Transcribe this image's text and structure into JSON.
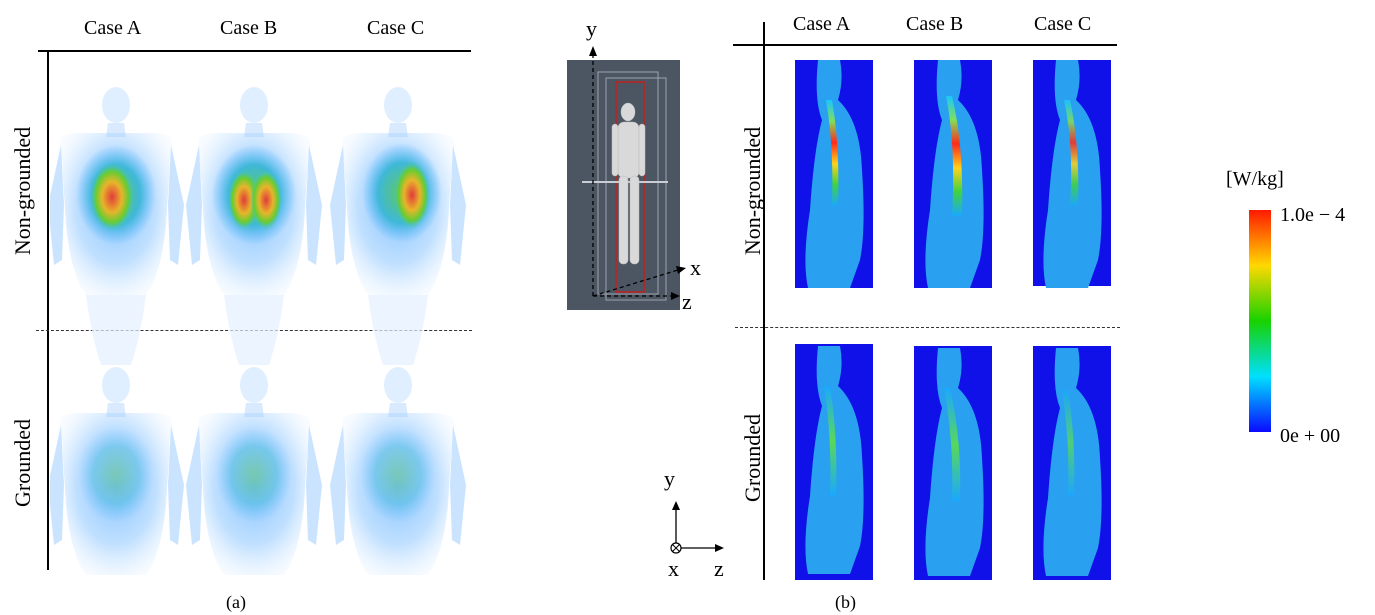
{
  "panel_a": {
    "columns": [
      "Case A",
      "Case B",
      "Case C"
    ],
    "rows": [
      "Non-grounded",
      "Grounded"
    ],
    "label": "(a)"
  },
  "model_view": {
    "axis_y": "y",
    "axis_x": "x",
    "axis_z": "z"
  },
  "panel_b": {
    "columns": [
      "Case A",
      "Case B",
      "Case C"
    ],
    "rows": [
      "Non-grounded",
      "Grounded"
    ],
    "label": "(b)",
    "axes": {
      "y": "y",
      "x": "x",
      "z": "z"
    }
  },
  "colorbar": {
    "unit": "[W/kg]",
    "max_label": "1.0e − 4",
    "min_label": "0e + 00",
    "colors": [
      "#ff1a00",
      "#ffd800",
      "#18d200",
      "#00e0ff",
      "#0a0aff"
    ]
  }
}
